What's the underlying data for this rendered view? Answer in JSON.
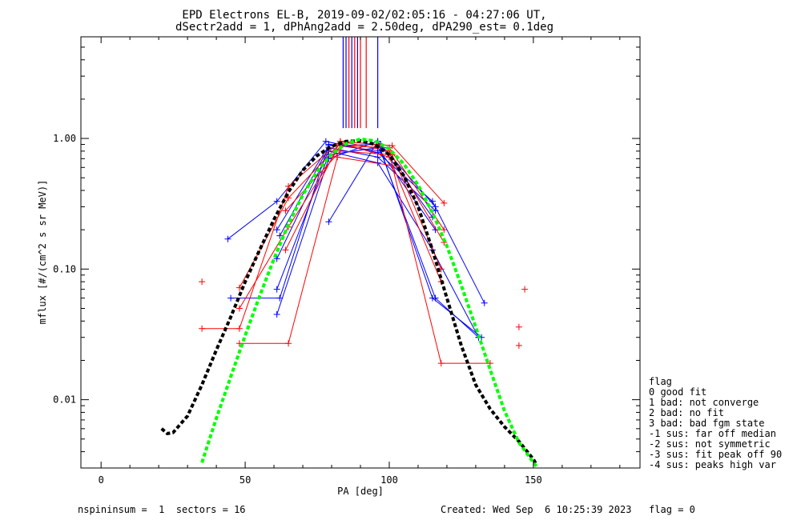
{
  "title_line1": "EPD Electrons EL-B, 2019-09-02/02:05:16 - 04:27:06 UT,",
  "title_line2": "dSectr2add = 1, dPhAng2add = 2.50deg, dPA290_est=   0.1deg",
  "xlabel": "PA [deg]",
  "ylabel": "mflux [#/(cm^2 s sr MeV)]",
  "xticks": [
    "0",
    "50",
    "100",
    "150"
  ],
  "yticks": [
    "0.01",
    "0.10",
    "1.00"
  ],
  "legend": {
    "title": "flag",
    "items": [
      " 0 good fit",
      " 1 bad: not converge",
      " 2 bad: no fit",
      " 3 bad: bad fgm state",
      "-1 sus: far off median",
      "-2 sus: not symmetric",
      "-3 sus: fit peak off 90",
      "-4 sus: peaks high var"
    ]
  },
  "footer": {
    "left": "nspininsum =  1  sectors = 16",
    "right": "Created: Wed Sep  6 10:25:39 2023   flag = 0"
  },
  "colors": {
    "blue": "#0000ff",
    "red": "#ff0000",
    "black": "#000000",
    "green": "#00ff00"
  },
  "chart_data": {
    "type": "line",
    "xscale": "linear",
    "yscale": "log",
    "xlim": [
      -7,
      187
    ],
    "ylim": [
      0.003,
      6
    ],
    "grid": false,
    "legend_position": "right",
    "series": [
      {
        "color": "blue",
        "points": [
          [
            44,
            0.17
          ],
          [
            61,
            0.33
          ],
          [
            78,
            0.95
          ],
          [
            96,
            0.78
          ],
          [
            115,
            0.33
          ],
          [
            133,
            0.055
          ]
        ]
      },
      {
        "color": "blue",
        "points": [
          [
            45,
            0.06
          ],
          [
            62,
            0.06
          ],
          [
            79,
            0.9
          ],
          [
            97,
            0.8
          ],
          [
            116,
            0.06
          ],
          [
            131,
            0.03
          ]
        ]
      },
      {
        "color": "blue",
        "points": [
          [
            61,
            0.045
          ],
          [
            79,
            0.7
          ],
          [
            96,
            0.95
          ],
          [
            115,
            0.06
          ],
          [
            132,
            0.03
          ]
        ]
      },
      {
        "color": "blue",
        "points": [
          [
            61,
            0.2
          ],
          [
            79,
            0.88
          ],
          [
            97,
            0.9
          ],
          [
            116,
            0.3
          ]
        ]
      },
      {
        "color": "blue",
        "points": [
          [
            61,
            0.12
          ],
          [
            79,
            0.8
          ],
          [
            96,
            0.65
          ],
          [
            115,
            0.14
          ],
          [
            131,
            0.03
          ]
        ]
      },
      {
        "color": "blue",
        "points": [
          [
            61,
            0.07
          ],
          [
            79,
            0.75
          ],
          [
            96,
            0.85
          ],
          [
            116,
            0.2
          ]
        ]
      },
      {
        "color": "blue",
        "points": [
          [
            79,
            0.23
          ],
          [
            96,
            0.95
          ],
          [
            115,
            0.25
          ]
        ]
      },
      {
        "color": "blue",
        "points": [
          [
            62,
            0.18
          ],
          [
            79,
            0.85
          ],
          [
            96,
            0.72
          ],
          [
            116,
            0.28
          ]
        ]
      },
      {
        "color": "red",
        "points": [
          [
            35,
            0.035
          ],
          [
            48,
            0.035
          ],
          [
            65,
            0.43
          ],
          [
            83,
            0.95
          ],
          [
            101,
            0.88
          ],
          [
            119,
            0.32
          ]
        ]
      },
      {
        "color": "red",
        "points": [
          [
            48,
            0.027
          ],
          [
            65,
            0.027
          ],
          [
            82,
            0.72
          ],
          [
            101,
            0.62
          ],
          [
            118,
            0.019
          ],
          [
            135,
            0.019
          ]
        ]
      },
      {
        "color": "red",
        "points": [
          [
            48,
            0.072
          ],
          [
            65,
            0.35
          ],
          [
            83,
            0.92
          ],
          [
            100,
            0.72
          ],
          [
            118,
            0.08
          ]
        ]
      },
      {
        "color": "red",
        "points": [
          [
            48,
            0.05
          ],
          [
            65,
            0.21
          ],
          [
            83,
            0.88
          ],
          [
            100,
            0.85
          ],
          [
            119,
            0.2
          ]
        ]
      },
      {
        "color": "red",
        "points": [
          [
            64,
            0.28
          ],
          [
            83,
            0.8
          ],
          [
            101,
            0.75
          ],
          [
            118,
            0.1
          ]
        ]
      },
      {
        "color": "red",
        "points": [
          [
            64,
            0.14
          ],
          [
            83,
            0.95
          ],
          [
            100,
            0.8
          ],
          [
            119,
            0.16
          ]
        ]
      }
    ],
    "extra_points": [
      {
        "color": "red",
        "x": 35,
        "y": 0.08
      },
      {
        "color": "red",
        "x": 145,
        "y": 0.036
      },
      {
        "color": "red",
        "x": 145,
        "y": 0.026
      },
      {
        "color": "red",
        "x": 147,
        "y": 0.07
      }
    ],
    "vertical_lines": [
      {
        "color": "blue",
        "x": 84
      },
      {
        "color": "blue",
        "x": 85
      },
      {
        "color": "red",
        "x": 86
      },
      {
        "color": "blue",
        "x": 87
      },
      {
        "color": "red",
        "x": 88
      },
      {
        "color": "blue",
        "x": 89
      },
      {
        "color": "red",
        "x": 90
      },
      {
        "color": "red",
        "x": 92
      },
      {
        "color": "blue",
        "x": 96
      }
    ],
    "fit_curves": [
      {
        "color": "black",
        "style": "dashed",
        "points": [
          [
            21,
            0.006
          ],
          [
            23,
            0.0055
          ],
          [
            25,
            0.0056
          ],
          [
            30,
            0.0075
          ],
          [
            35,
            0.013
          ],
          [
            40,
            0.024
          ],
          [
            45,
            0.043
          ],
          [
            50,
            0.08
          ],
          [
            55,
            0.14
          ],
          [
            60,
            0.24
          ],
          [
            65,
            0.39
          ],
          [
            70,
            0.57
          ],
          [
            75,
            0.74
          ],
          [
            80,
            0.87
          ],
          [
            85,
            0.95
          ],
          [
            90,
            0.96
          ],
          [
            95,
            0.9
          ],
          [
            100,
            0.75
          ],
          [
            105,
            0.52
          ],
          [
            110,
            0.3
          ],
          [
            115,
            0.14
          ],
          [
            120,
            0.06
          ],
          [
            125,
            0.026
          ],
          [
            130,
            0.013
          ],
          [
            135,
            0.0085
          ],
          [
            140,
            0.0062
          ],
          [
            145,
            0.0048
          ],
          [
            150,
            0.0035
          ],
          [
            151,
            0.0032
          ]
        ]
      },
      {
        "color": "green",
        "style": "dashed",
        "points": [
          [
            35,
            0.0033
          ],
          [
            40,
            0.0072
          ],
          [
            45,
            0.015
          ],
          [
            50,
            0.031
          ],
          [
            55,
            0.062
          ],
          [
            60,
            0.12
          ],
          [
            65,
            0.22
          ],
          [
            70,
            0.37
          ],
          [
            75,
            0.56
          ],
          [
            80,
            0.76
          ],
          [
            85,
            0.91
          ],
          [
            90,
            0.99
          ],
          [
            95,
            0.96
          ],
          [
            100,
            0.83
          ],
          [
            105,
            0.64
          ],
          [
            110,
            0.44
          ],
          [
            115,
            0.27
          ],
          [
            120,
            0.15
          ],
          [
            125,
            0.075
          ],
          [
            130,
            0.036
          ],
          [
            135,
            0.017
          ],
          [
            140,
            0.0082
          ],
          [
            145,
            0.0047
          ],
          [
            150,
            0.0033
          ],
          [
            151,
            0.0031
          ]
        ]
      }
    ]
  }
}
